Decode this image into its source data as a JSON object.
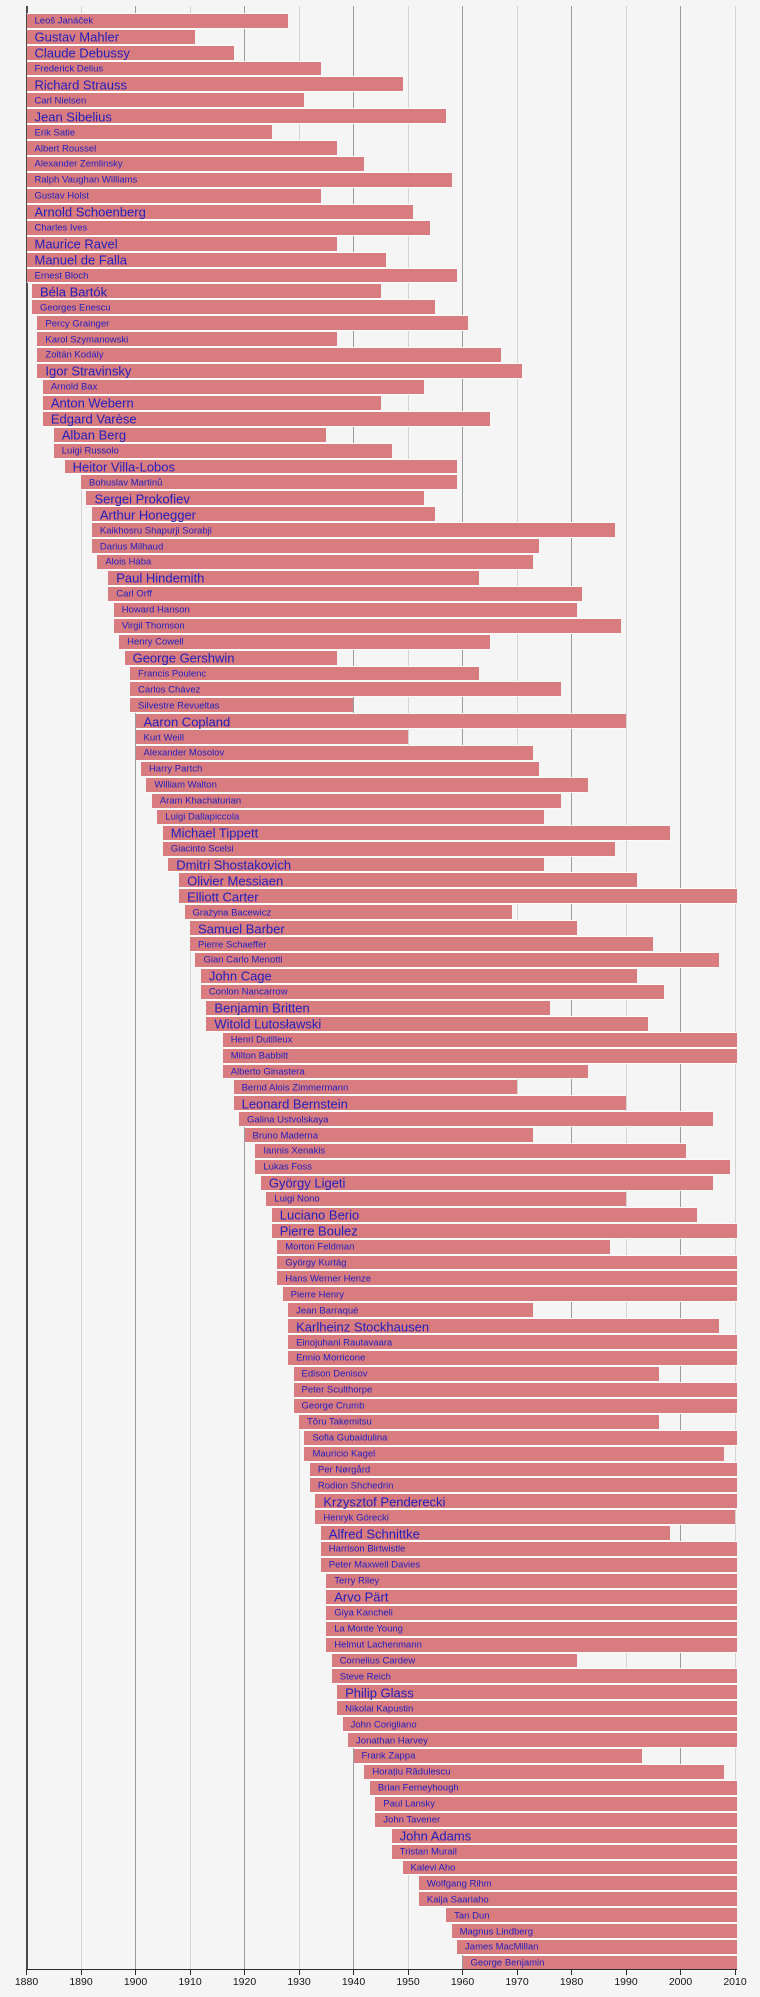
{
  "chart_data": {
    "type": "timeline",
    "x_axis": {
      "min": 1880,
      "max": 2010,
      "tick_interval": 10,
      "ticks": [
        1880,
        1890,
        1900,
        1910,
        1920,
        1930,
        1940,
        1950,
        1960,
        1970,
        1980,
        1990,
        2000,
        2010
      ]
    },
    "colors": {
      "bar": "#d97c7f",
      "bar_gap": "#fafafa",
      "label": "#2420bb",
      "grid_minor": "#d4d4d4",
      "grid_major": "#9b9b9b",
      "plot_edge": "#4a4a4a",
      "axis": "#2b2b2b",
      "tick_label": "#141414",
      "background": "#f5f5f6"
    },
    "composers": [
      {
        "name": "Leoš Janáček",
        "born": 1854,
        "died": 1928,
        "emphasis": false
      },
      {
        "name": "Gustav Mahler",
        "born": 1860,
        "died": 1911,
        "emphasis": true
      },
      {
        "name": "Claude Debussy",
        "born": 1862,
        "died": 1918,
        "emphasis": true
      },
      {
        "name": "Frederick Delius",
        "born": 1862,
        "died": 1934,
        "emphasis": false
      },
      {
        "name": "Richard Strauss",
        "born": 1864,
        "died": 1949,
        "emphasis": true
      },
      {
        "name": "Carl Nielsen",
        "born": 1865,
        "died": 1931,
        "emphasis": false
      },
      {
        "name": "Jean Sibelius",
        "born": 1865,
        "died": 1957,
        "emphasis": true
      },
      {
        "name": "Erik Satie",
        "born": 1866,
        "died": 1925,
        "emphasis": false
      },
      {
        "name": "Albert Roussel",
        "born": 1869,
        "died": 1937,
        "emphasis": false
      },
      {
        "name": "Alexander Zemlinsky",
        "born": 1871,
        "died": 1942,
        "emphasis": false
      },
      {
        "name": "Ralph Vaughan Williams",
        "born": 1872,
        "died": 1958,
        "emphasis": false
      },
      {
        "name": "Gustav Holst",
        "born": 1874,
        "died": 1934,
        "emphasis": false
      },
      {
        "name": "Arnold Schoenberg",
        "born": 1874,
        "died": 1951,
        "emphasis": true
      },
      {
        "name": "Charles Ives",
        "born": 1874,
        "died": 1954,
        "emphasis": false
      },
      {
        "name": "Maurice Ravel",
        "born": 1875,
        "died": 1937,
        "emphasis": true
      },
      {
        "name": "Manuel de Falla",
        "born": 1876,
        "died": 1946,
        "emphasis": true
      },
      {
        "name": "Ernest Bloch",
        "born": 1880,
        "died": 1959,
        "emphasis": false
      },
      {
        "name": "Béla Bartók",
        "born": 1881,
        "died": 1945,
        "emphasis": true
      },
      {
        "name": "Georges Enescu",
        "born": 1881,
        "died": 1955,
        "emphasis": false
      },
      {
        "name": "Percy Grainger",
        "born": 1882,
        "died": 1961,
        "emphasis": false
      },
      {
        "name": "Karol Szymanowski",
        "born": 1882,
        "died": 1937,
        "emphasis": false
      },
      {
        "name": "Zoltán Kodály",
        "born": 1882,
        "died": 1967,
        "emphasis": false
      },
      {
        "name": "Igor Stravinsky",
        "born": 1882,
        "died": 1971,
        "emphasis": true
      },
      {
        "name": "Arnold Bax",
        "born": 1883,
        "died": 1953,
        "emphasis": false
      },
      {
        "name": "Anton Webern",
        "born": 1883,
        "died": 1945,
        "emphasis": true
      },
      {
        "name": "Edgard Varèse",
        "born": 1883,
        "died": 1965,
        "emphasis": true
      },
      {
        "name": "Alban Berg",
        "born": 1885,
        "died": 1935,
        "emphasis": true
      },
      {
        "name": "Luigi Russolo",
        "born": 1885,
        "died": 1947,
        "emphasis": false
      },
      {
        "name": "Heitor Villa-Lobos",
        "born": 1887,
        "died": 1959,
        "emphasis": true
      },
      {
        "name": "Bohuslav Martinů",
        "born": 1890,
        "died": 1959,
        "emphasis": false
      },
      {
        "name": "Sergei Prokofiev",
        "born": 1891,
        "died": 1953,
        "emphasis": true
      },
      {
        "name": "Arthur Honegger",
        "born": 1892,
        "died": 1955,
        "emphasis": true
      },
      {
        "name": "Kaikhosru Shapurji Sorabji",
        "born": 1892,
        "died": 1988,
        "emphasis": false
      },
      {
        "name": "Darius Milhaud",
        "born": 1892,
        "died": 1974,
        "emphasis": false
      },
      {
        "name": "Alois Hába",
        "born": 1893,
        "died": 1973,
        "emphasis": false
      },
      {
        "name": "Paul Hindemith",
        "born": 1895,
        "died": 1963,
        "emphasis": true
      },
      {
        "name": "Carl Orff",
        "born": 1895,
        "died": 1982,
        "emphasis": false
      },
      {
        "name": "Howard Hanson",
        "born": 1896,
        "died": 1981,
        "emphasis": false
      },
      {
        "name": "Virgil Thomson",
        "born": 1896,
        "died": 1989,
        "emphasis": false
      },
      {
        "name": "Henry Cowell",
        "born": 1897,
        "died": 1965,
        "emphasis": false
      },
      {
        "name": "George Gershwin",
        "born": 1898,
        "died": 1937,
        "emphasis": true
      },
      {
        "name": "Francis Poulenc",
        "born": 1899,
        "died": 1963,
        "emphasis": false
      },
      {
        "name": "Carlos Chávez",
        "born": 1899,
        "died": 1978,
        "emphasis": false
      },
      {
        "name": "Silvestre Revueltas",
        "born": 1899,
        "died": 1940,
        "emphasis": false
      },
      {
        "name": "Aaron Copland",
        "born": 1900,
        "died": 1990,
        "emphasis": true
      },
      {
        "name": "Kurt Weill",
        "born": 1900,
        "died": 1950,
        "emphasis": false
      },
      {
        "name": "Alexander Mosolov",
        "born": 1900,
        "died": 1973,
        "emphasis": false
      },
      {
        "name": "Harry Partch",
        "born": 1901,
        "died": 1974,
        "emphasis": false
      },
      {
        "name": "William Walton",
        "born": 1902,
        "died": 1983,
        "emphasis": false
      },
      {
        "name": "Aram Khachaturian",
        "born": 1903,
        "died": 1978,
        "emphasis": false
      },
      {
        "name": "Luigi Dallapiccola",
        "born": 1904,
        "died": 1975,
        "emphasis": false
      },
      {
        "name": "Michael Tippett",
        "born": 1905,
        "died": 1998,
        "emphasis": true
      },
      {
        "name": "Giacinto Scelsi",
        "born": 1905,
        "died": 1988,
        "emphasis": false
      },
      {
        "name": "Dmitri Shostakovich",
        "born": 1906,
        "died": 1975,
        "emphasis": true
      },
      {
        "name": "Olivier Messiaen",
        "born": 1908,
        "died": 1992,
        "emphasis": true
      },
      {
        "name": "Elliott Carter",
        "born": 1908,
        "died": null,
        "emphasis": true
      },
      {
        "name": "Grażyna Bacewicz",
        "born": 1909,
        "died": 1969,
        "emphasis": false
      },
      {
        "name": "Samuel Barber",
        "born": 1910,
        "died": 1981,
        "emphasis": true
      },
      {
        "name": "Pierre Schaeffer",
        "born": 1910,
        "died": 1995,
        "emphasis": false
      },
      {
        "name": "Gian Carlo Menotti",
        "born": 1911,
        "died": 2007,
        "emphasis": false
      },
      {
        "name": "John Cage",
        "born": 1912,
        "died": 1992,
        "emphasis": true
      },
      {
        "name": "Conlon Nancarrow",
        "born": 1912,
        "died": 1997,
        "emphasis": false
      },
      {
        "name": "Benjamin Britten",
        "born": 1913,
        "died": 1976,
        "emphasis": true
      },
      {
        "name": "Witold Lutosławski",
        "born": 1913,
        "died": 1994,
        "emphasis": true
      },
      {
        "name": "Henri Dutilleux",
        "born": 1916,
        "died": null,
        "emphasis": false
      },
      {
        "name": "Milton Babbitt",
        "born": 1916,
        "died": null,
        "emphasis": false
      },
      {
        "name": "Alberto Ginastera",
        "born": 1916,
        "died": 1983,
        "emphasis": false
      },
      {
        "name": "Bernd Alois Zimmermann",
        "born": 1918,
        "died": 1970,
        "emphasis": false
      },
      {
        "name": "Leonard Bernstein",
        "born": 1918,
        "died": 1990,
        "emphasis": true
      },
      {
        "name": "Galina Ustvolskaya",
        "born": 1919,
        "died": 2006,
        "emphasis": false
      },
      {
        "name": "Bruno Maderna",
        "born": 1920,
        "died": 1973,
        "emphasis": false
      },
      {
        "name": "Iannis Xenakis",
        "born": 1922,
        "died": 2001,
        "emphasis": false
      },
      {
        "name": "Lukas Foss",
        "born": 1922,
        "died": 2009,
        "emphasis": false
      },
      {
        "name": "György Ligeti",
        "born": 1923,
        "died": 2006,
        "emphasis": true
      },
      {
        "name": "Luigi Nono",
        "born": 1924,
        "died": 1990,
        "emphasis": false
      },
      {
        "name": "Luciano Berio",
        "born": 1925,
        "died": 2003,
        "emphasis": true
      },
      {
        "name": "Pierre Boulez",
        "born": 1925,
        "died": null,
        "emphasis": true
      },
      {
        "name": "Morton Feldman",
        "born": 1926,
        "died": 1987,
        "emphasis": false
      },
      {
        "name": "György Kurtág",
        "born": 1926,
        "died": null,
        "emphasis": false
      },
      {
        "name": "Hans Werner Henze",
        "born": 1926,
        "died": null,
        "emphasis": false
      },
      {
        "name": "Pierre Henry",
        "born": 1927,
        "died": null,
        "emphasis": false
      },
      {
        "name": "Jean Barraqué",
        "born": 1928,
        "died": 1973,
        "emphasis": false
      },
      {
        "name": "Karlheinz Stockhausen",
        "born": 1928,
        "died": 2007,
        "emphasis": true
      },
      {
        "name": "Einojuhani Rautavaara",
        "born": 1928,
        "died": null,
        "emphasis": false
      },
      {
        "name": "Ennio Morricone",
        "born": 1928,
        "died": null,
        "emphasis": false
      },
      {
        "name": "Edison Denisov",
        "born": 1929,
        "died": 1996,
        "emphasis": false
      },
      {
        "name": "Peter Sculthorpe",
        "born": 1929,
        "died": null,
        "emphasis": false
      },
      {
        "name": "George Crumb",
        "born": 1929,
        "died": null,
        "emphasis": false
      },
      {
        "name": "Tōru Takemitsu",
        "born": 1930,
        "died": 1996,
        "emphasis": false
      },
      {
        "name": "Sofia Gubaidulina",
        "born": 1931,
        "died": null,
        "emphasis": false
      },
      {
        "name": "Mauricio Kagel",
        "born": 1931,
        "died": 2008,
        "emphasis": false
      },
      {
        "name": "Per Nørgård",
        "born": 1932,
        "died": null,
        "emphasis": false
      },
      {
        "name": "Rodion Shchedrin",
        "born": 1932,
        "died": null,
        "emphasis": false
      },
      {
        "name": "Krzysztof Penderecki",
        "born": 1933,
        "died": null,
        "emphasis": true
      },
      {
        "name": "Henryk Górecki",
        "born": 1933,
        "died": 2010,
        "emphasis": false
      },
      {
        "name": "Alfred Schnittke",
        "born": 1934,
        "died": 1998,
        "emphasis": true
      },
      {
        "name": "Harrison Birtwistle",
        "born": 1934,
        "died": null,
        "emphasis": false
      },
      {
        "name": "Peter Maxwell Davies",
        "born": 1934,
        "died": null,
        "emphasis": false
      },
      {
        "name": "Terry Riley",
        "born": 1935,
        "died": null,
        "emphasis": false
      },
      {
        "name": "Arvo Pärt",
        "born": 1935,
        "died": null,
        "emphasis": true
      },
      {
        "name": "Giya Kancheli",
        "born": 1935,
        "died": null,
        "emphasis": false
      },
      {
        "name": "La Monte Young",
        "born": 1935,
        "died": null,
        "emphasis": false
      },
      {
        "name": "Helmut Lachenmann",
        "born": 1935,
        "died": null,
        "emphasis": false
      },
      {
        "name": "Cornelius Cardew",
        "born": 1936,
        "died": 1981,
        "emphasis": false
      },
      {
        "name": "Steve Reich",
        "born": 1936,
        "died": null,
        "emphasis": false
      },
      {
        "name": "Philip Glass",
        "born": 1937,
        "died": null,
        "emphasis": true
      },
      {
        "name": "Nikolai Kapustin",
        "born": 1937,
        "died": null,
        "emphasis": false
      },
      {
        "name": "John Corigliano",
        "born": 1938,
        "died": null,
        "emphasis": false
      },
      {
        "name": "Jonathan Harvey",
        "born": 1939,
        "died": null,
        "emphasis": false
      },
      {
        "name": "Frank Zappa",
        "born": 1940,
        "died": 1993,
        "emphasis": false
      },
      {
        "name": "Horațiu Rădulescu",
        "born": 1942,
        "died": 2008,
        "emphasis": false
      },
      {
        "name": "Brian Ferneyhough",
        "born": 1943,
        "died": null,
        "emphasis": false
      },
      {
        "name": "Paul Lansky",
        "born": 1944,
        "died": null,
        "emphasis": false
      },
      {
        "name": "John Tavener",
        "born": 1944,
        "died": null,
        "emphasis": false
      },
      {
        "name": "John Adams",
        "born": 1947,
        "died": null,
        "emphasis": true
      },
      {
        "name": "Tristan Murail",
        "born": 1947,
        "died": null,
        "emphasis": false
      },
      {
        "name": "Kalevi Aho",
        "born": 1949,
        "died": null,
        "emphasis": false
      },
      {
        "name": "Wolfgang Rihm",
        "born": 1952,
        "died": null,
        "emphasis": false
      },
      {
        "name": "Kaija Saariaho",
        "born": 1952,
        "died": null,
        "emphasis": false
      },
      {
        "name": "Tan Dun",
        "born": 1957,
        "died": null,
        "emphasis": false
      },
      {
        "name": "Magnus Lindberg",
        "born": 1958,
        "died": null,
        "emphasis": false
      },
      {
        "name": "James MacMillan",
        "born": 1959,
        "died": null,
        "emphasis": false
      },
      {
        "name": "George Benjamin",
        "born": 1960,
        "died": null,
        "emphasis": false
      }
    ]
  }
}
